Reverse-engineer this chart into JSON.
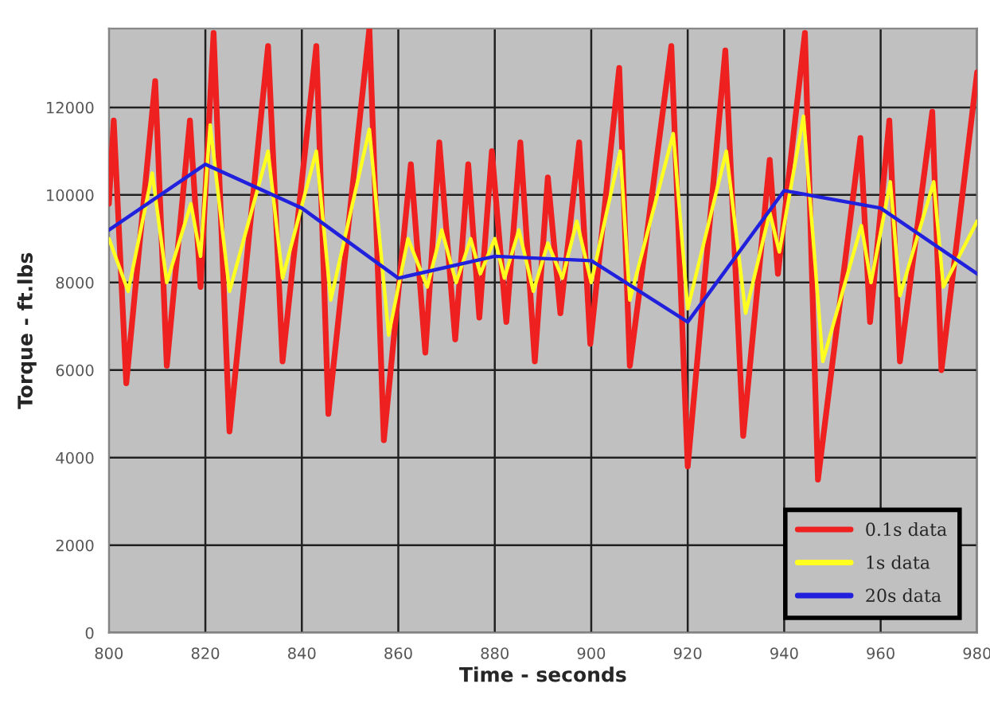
{
  "chart_data": {
    "type": "line",
    "xlabel": "Time - seconds",
    "ylabel": "Torque - ft.lbs",
    "xlim": [
      800,
      980
    ],
    "xticks": [
      800,
      820,
      840,
      860,
      880,
      900,
      920,
      940,
      960,
      980
    ],
    "ylim": [
      0,
      13800
    ],
    "yticks": [
      0,
      2000,
      4000,
      6000,
      8000,
      10000,
      12000
    ],
    "grid": true,
    "legend": "bottom right",
    "marker": "none",
    "line_style": "solid",
    "series": [
      {
        "name": "0.1s data",
        "color": "#ee2020",
        "x": [
          800,
          801,
          803.6,
          809.6,
          812,
          816.8,
          819,
          821.7,
          825,
          833,
          836,
          843,
          845.5,
          854,
          857,
          862.6,
          865.6,
          868.5,
          871.8,
          874.5,
          876.8,
          879.4,
          882.4,
          885.3,
          888.3,
          891,
          893.6,
          897.5,
          899.8,
          905.8,
          908,
          916.6,
          920,
          927.8,
          931.5,
          937,
          938.7,
          944.3,
          947,
          955.8,
          957.8,
          961.8,
          964,
          970.7,
          972.6,
          980
        ],
        "values": [
          9800,
          11700,
          5700,
          12600,
          6100,
          11700,
          7900,
          13700,
          4600,
          13400,
          6200,
          13400,
          5000,
          13800,
          4400,
          10700,
          6400,
          11200,
          6700,
          10700,
          7200,
          11000,
          7100,
          11200,
          6200,
          10400,
          7300,
          11200,
          6600,
          12900,
          6100,
          13400,
          3800,
          13300,
          4500,
          10800,
          8200,
          13700,
          3500,
          11300,
          7100,
          11700,
          6200,
          11900,
          6000,
          12800
        ]
      },
      {
        "name": "1s data",
        "color": "#ffff20",
        "x": [
          800,
          804,
          809,
          812,
          817,
          819,
          821,
          825,
          833,
          836,
          843,
          846,
          854,
          858,
          862,
          866,
          869,
          872,
          875,
          877,
          880,
          882,
          885,
          888,
          891,
          894,
          897,
          900,
          906,
          908,
          917,
          920,
          928,
          932,
          937,
          939,
          944,
          948,
          956,
          958,
          962,
          964,
          971,
          973,
          980
        ],
        "values": [
          9000,
          7800,
          10500,
          8000,
          9800,
          8600,
          11600,
          7800,
          11000,
          8100,
          11000,
          7600,
          11500,
          6800,
          9000,
          7900,
          9200,
          8000,
          9000,
          8200,
          9000,
          8100,
          9200,
          7800,
          8900,
          8100,
          9400,
          8000,
          11000,
          7600,
          11400,
          7400,
          11000,
          7300,
          9600,
          8700,
          11800,
          6200,
          9300,
          8000,
          10300,
          7700,
          10300,
          7900,
          9400
        ]
      },
      {
        "name": "20s data",
        "color": "#2020dd",
        "x": [
          800,
          820,
          840,
          860,
          880,
          900,
          920,
          940,
          960,
          980
        ],
        "values": [
          9200,
          10700,
          9700,
          8100,
          8600,
          8500,
          7100,
          10100,
          9700,
          8200
        ]
      }
    ]
  }
}
